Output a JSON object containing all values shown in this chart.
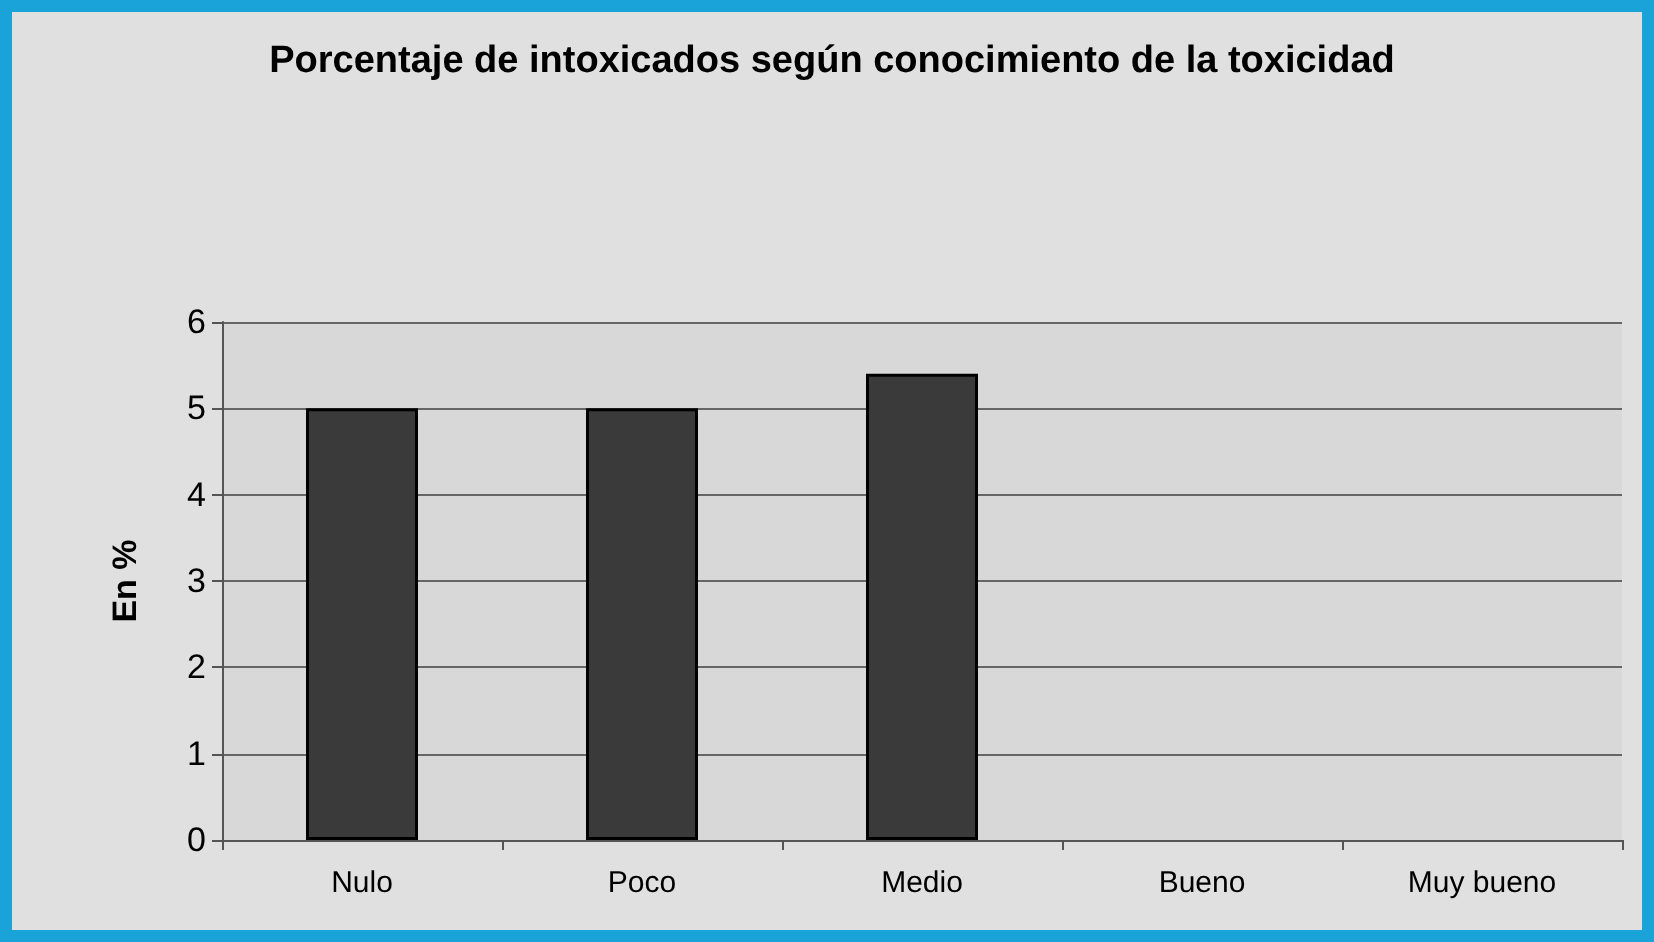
{
  "chart_data": {
    "type": "bar",
    "title": "Porcentaje de intoxicados según conocimiento de la toxicidad",
    "ylabel": "En %",
    "categories": [
      "Nulo",
      "Poco",
      "Medio",
      "Bueno",
      "Muy bueno"
    ],
    "values": [
      5,
      5,
      5.4,
      0,
      0
    ],
    "color": "#3a3a3a",
    "ylim": [
      0,
      6
    ],
    "yticks": [
      0,
      1,
      2,
      3,
      4,
      5,
      6
    ],
    "grid": "y"
  }
}
